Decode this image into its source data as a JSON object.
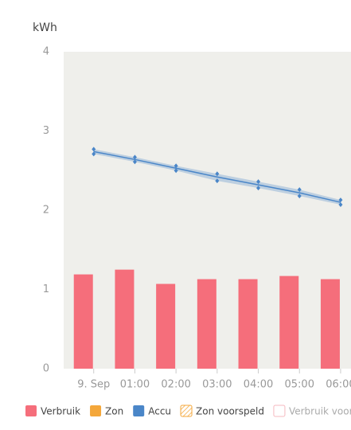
{
  "chart_data": {
    "type": "bar",
    "y_label": "kWh",
    "categories": [
      "9. Sep",
      "01:00",
      "02:00",
      "03:00",
      "04:00",
      "05:00",
      "06:00"
    ],
    "series": [
      {
        "name": "Verbruik",
        "type": "bar",
        "color": "#f56e7b",
        "legend_style": "solid",
        "values": [
          1.19,
          1.25,
          1.07,
          1.13,
          1.13,
          1.17,
          1.13
        ]
      },
      {
        "name": "Zon",
        "type": "bar",
        "color": "#f4a73a",
        "legend_style": "solid",
        "values": [
          null,
          null,
          null,
          null,
          null,
          null,
          null
        ]
      },
      {
        "name": "Accu",
        "type": "line",
        "color": "#4a86c8",
        "legend_style": "solid",
        "values": [
          2.74,
          2.64,
          2.53,
          2.42,
          2.32,
          2.22,
          2.1
        ],
        "high": [
          2.77,
          2.67,
          2.56,
          2.46,
          2.36,
          2.26,
          2.13
        ],
        "low": [
          2.71,
          2.61,
          2.5,
          2.37,
          2.28,
          2.18,
          2.07
        ]
      },
      {
        "name": "Zon voorspeld",
        "type": "bar",
        "color": "#f4a73a",
        "legend_style": "hatched",
        "values": [
          null,
          null,
          null,
          null,
          null,
          null,
          null
        ]
      },
      {
        "name": "Verbruik voorspeld",
        "type": "bar",
        "color": "#f5b8bf",
        "legend_style": "outline",
        "values": [
          null,
          null,
          null,
          null,
          null,
          null,
          null
        ]
      }
    ],
    "ylim": [
      0,
      4
    ],
    "yticks": [
      0,
      1,
      2,
      3,
      4
    ],
    "grid": false
  }
}
